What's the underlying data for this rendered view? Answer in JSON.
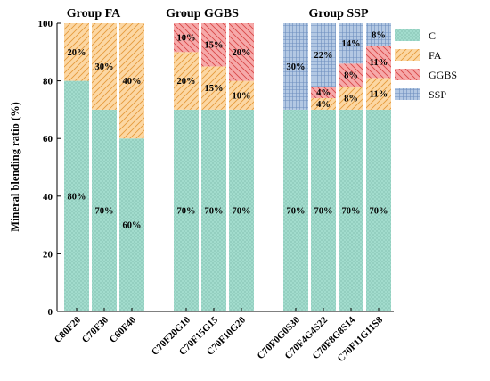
{
  "chart_data": {
    "type": "bar",
    "stacked": true,
    "ylabel": "Mineral blending ratio (%)",
    "xlabel": "",
    "ylim": [
      0,
      100
    ],
    "yticks": [
      0,
      20,
      40,
      60,
      80,
      100
    ],
    "grid": false,
    "legend_position": "right",
    "groups": [
      {
        "title": "Group FA",
        "categories": [
          "C80F20",
          "C70F30",
          "C60F40"
        ]
      },
      {
        "title": "Group GGBS",
        "categories": [
          "C70F20G10",
          "C70F15G15",
          "C70F10G20"
        ]
      },
      {
        "title": "Group SSP",
        "categories": [
          "C70F0G0S30",
          "C70F4G4S22",
          "C70F8G8S14",
          "C70F11G11S8"
        ]
      }
    ],
    "categories": [
      "C80F20",
      "C70F30",
      "C60F40",
      "C70F20G10",
      "C70F15G15",
      "C70F10G20",
      "C70F0G0S30",
      "C70F4G4S22",
      "C70F8G8S14",
      "C70F11G11S8"
    ],
    "series": [
      {
        "name": "C",
        "color": "#9fd9cb",
        "pattern": "dots",
        "values": [
          80,
          70,
          60,
          70,
          70,
          70,
          70,
          70,
          70,
          70
        ],
        "labels": [
          "80%",
          "70%",
          "60%",
          "70%",
          "70%",
          "70%",
          "70%",
          "70%",
          "70%",
          "70%"
        ]
      },
      {
        "name": "FA",
        "color": "#fbd39c",
        "pattern": "diagonal",
        "values": [
          20,
          30,
          40,
          20,
          15,
          10,
          0,
          4,
          8,
          11
        ],
        "labels": [
          "20%",
          "30%",
          "40%",
          "20%",
          "15%",
          "10%",
          "",
          "4%",
          "8%",
          "11%"
        ]
      },
      {
        "name": "GGBS",
        "color": "#f4a6a6",
        "pattern": "diagonal-red",
        "values": [
          0,
          0,
          0,
          10,
          15,
          20,
          0,
          4,
          8,
          11
        ],
        "labels": [
          "",
          "",
          "",
          "10%",
          "15%",
          "20%",
          "",
          "4%",
          "8%",
          "11%"
        ]
      },
      {
        "name": "SSP",
        "color": "#a7bede",
        "pattern": "grid",
        "values": [
          0,
          0,
          0,
          0,
          0,
          0,
          30,
          22,
          14,
          8
        ],
        "labels": [
          "",
          "",
          "",
          "",
          "",
          "",
          "30%",
          "22%",
          "14%",
          "8%"
        ]
      }
    ]
  }
}
